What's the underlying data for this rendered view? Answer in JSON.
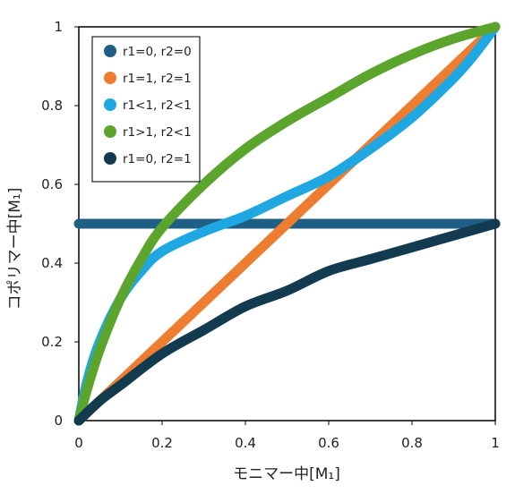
{
  "chart_data": {
    "type": "line",
    "title": "",
    "xlabel": "モニマー中[M₁]",
    "ylabel": "コポリマー中[M₁]",
    "xlim": [
      0,
      1
    ],
    "ylim": [
      0,
      1
    ],
    "xticks": [
      "0",
      "0.2",
      "0.4",
      "0.6",
      "0.8",
      "1"
    ],
    "yticks": [
      "0",
      "0.2",
      "0.4",
      "0.6",
      "0.8",
      "1"
    ],
    "grid": false,
    "legend_position": "top-left",
    "series": [
      {
        "name": "r1=0, r2=0",
        "color": "#1f5f86",
        "x": [
          0,
          0.05,
          0.1,
          0.2,
          0.3,
          0.4,
          0.5,
          0.6,
          0.7,
          0.8,
          0.9,
          1.0
        ],
        "y": [
          0.5,
          0.5,
          0.5,
          0.5,
          0.5,
          0.5,
          0.5,
          0.5,
          0.5,
          0.5,
          0.5,
          0.5
        ]
      },
      {
        "name": "r1=1, r2=1",
        "color": "#ed7d31",
        "x": [
          0,
          0.1,
          0.2,
          0.3,
          0.4,
          0.5,
          0.6,
          0.7,
          0.8,
          0.9,
          1.0
        ],
        "y": [
          0,
          0.1,
          0.2,
          0.3,
          0.4,
          0.5,
          0.6,
          0.7,
          0.8,
          0.9,
          1.0
        ]
      },
      {
        "name": "r1<1, r2<1",
        "color": "#1ea7e1",
        "x": [
          0,
          0.02,
          0.05,
          0.1,
          0.15,
          0.2,
          0.3,
          0.4,
          0.5,
          0.6,
          0.7,
          0.8,
          0.9,
          0.95,
          1.0
        ],
        "y": [
          0,
          0.1,
          0.2,
          0.31,
          0.38,
          0.43,
          0.48,
          0.52,
          0.57,
          0.62,
          0.69,
          0.77,
          0.87,
          0.93,
          1.0
        ]
      },
      {
        "name": "r1>1, r2<1",
        "color": "#5ca52d",
        "x": [
          0,
          0.02,
          0.05,
          0.1,
          0.15,
          0.2,
          0.3,
          0.4,
          0.5,
          0.6,
          0.7,
          0.8,
          0.9,
          1.0
        ],
        "y": [
          0,
          0.08,
          0.18,
          0.31,
          0.41,
          0.49,
          0.6,
          0.69,
          0.76,
          0.82,
          0.88,
          0.93,
          0.97,
          1.0
        ]
      },
      {
        "name": "r1=0, r2=1",
        "color": "#123b4f",
        "x": [
          0,
          0.05,
          0.1,
          0.2,
          0.3,
          0.4,
          0.5,
          0.6,
          0.7,
          0.8,
          0.9,
          1.0
        ],
        "y": [
          0,
          0.05,
          0.09,
          0.17,
          0.23,
          0.29,
          0.33,
          0.38,
          0.41,
          0.44,
          0.47,
          0.5
        ]
      }
    ]
  }
}
